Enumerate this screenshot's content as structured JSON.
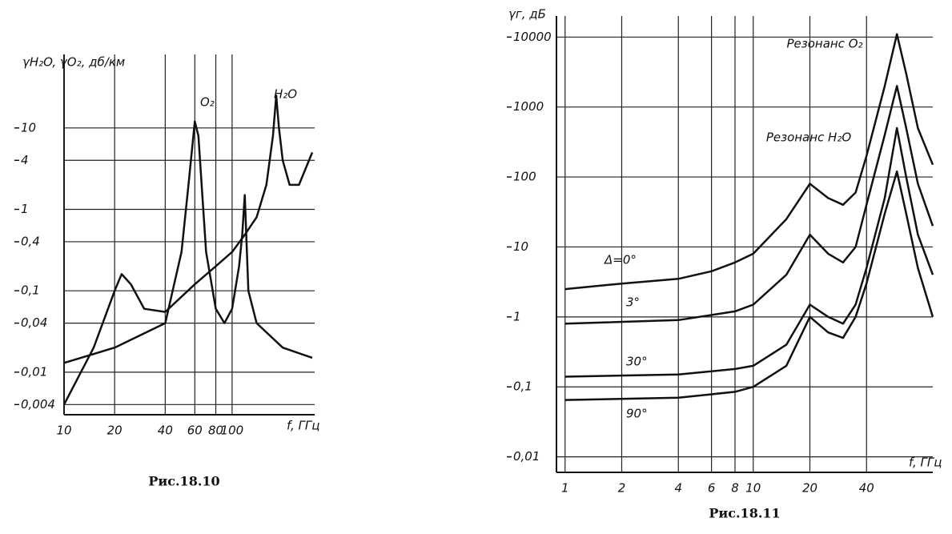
{
  "chart_data": [
    {
      "type": "line",
      "caption": "Рис.18.10",
      "y_label": "γH₂O, γO₂, дб/км",
      "x_label": "f, ГГц",
      "xscale": "log",
      "yscale": "log",
      "grid": true,
      "xlim": [
        10,
        310
      ],
      "ylim": [
        0.003,
        80
      ],
      "xticks": [
        10,
        20,
        40,
        60,
        80,
        100
      ],
      "yticks": [
        {
          "value": 0.004,
          "label": "0,004"
        },
        {
          "value": 0.01,
          "label": "0,01"
        },
        {
          "value": 0.04,
          "label": "0,04"
        },
        {
          "value": 0.1,
          "label": "0,1"
        },
        {
          "value": 0.4,
          "label": "0,4"
        },
        1,
        4,
        10
      ],
      "series": [
        {
          "name": "H₂O",
          "color": "#111111",
          "x": [
            10,
            15,
            20,
            22,
            25,
            30,
            40,
            60,
            80,
            100,
            120,
            140,
            160,
            175,
            183,
            190,
            200,
            220,
            250,
            300
          ],
          "values": [
            0.004,
            0.02,
            0.1,
            0.16,
            0.12,
            0.06,
            0.055,
            0.12,
            0.2,
            0.3,
            0.5,
            0.8,
            2,
            8,
            25,
            10,
            4,
            2,
            2,
            5
          ]
        },
        {
          "name": "O₂",
          "color": "#111111",
          "x": [
            10,
            20,
            40,
            50,
            55,
            60,
            63,
            70,
            80,
            90,
            100,
            110,
            115,
            119,
            125,
            140,
            200,
            300
          ],
          "values": [
            0.013,
            0.02,
            0.04,
            0.3,
            2,
            12,
            8,
            0.3,
            0.06,
            0.04,
            0.06,
            0.2,
            0.5,
            1.5,
            0.1,
            0.04,
            0.02,
            0.015
          ]
        }
      ]
    },
    {
      "type": "line",
      "caption": "Рис.18.11",
      "y_label": "γг, дБ",
      "x_label": "f, ГГц",
      "xscale": "log",
      "yscale": "log",
      "grid": true,
      "xlim": [
        0.9,
        90
      ],
      "ylim": [
        0.006,
        20000
      ],
      "xticks": [
        1,
        2,
        4,
        6,
        8,
        10,
        20,
        40
      ],
      "yticks": [
        {
          "value": 0.01,
          "label": "0,01"
        },
        {
          "value": 0.1,
          "label": "0,1"
        },
        1,
        10,
        100,
        1000,
        10000
      ],
      "annotations": [
        "Резонанс O₂",
        "Резонанс H₂O"
      ],
      "series": [
        {
          "name": "Δ=0°",
          "color": "#111111",
          "x": [
            1,
            2,
            4,
            6,
            8,
            10,
            15,
            20,
            25,
            30,
            35,
            40,
            50,
            58,
            65,
            75,
            90
          ],
          "values": [
            2.5,
            3,
            3.5,
            4.5,
            6,
            8,
            25,
            80,
            50,
            40,
            60,
            200,
            2000,
            11000,
            3000,
            500,
            150
          ]
        },
        {
          "name": "3°",
          "color": "#111111",
          "x": [
            1,
            4,
            8,
            10,
            15,
            20,
            25,
            30,
            35,
            40,
            50,
            58,
            65,
            75,
            90
          ],
          "values": [
            0.8,
            0.9,
            1.2,
            1.5,
            4,
            15,
            8,
            6,
            10,
            40,
            400,
            2000,
            500,
            80,
            20
          ]
        },
        {
          "name": "30°",
          "color": "#111111",
          "x": [
            1,
            4,
            8,
            10,
            15,
            20,
            25,
            30,
            35,
            40,
            50,
            58,
            65,
            75,
            90
          ],
          "values": [
            0.14,
            0.15,
            0.18,
            0.2,
            0.4,
            1.5,
            1,
            0.8,
            1.5,
            5,
            50,
            500,
            100,
            15,
            4
          ]
        },
        {
          "name": "90°",
          "color": "#111111",
          "x": [
            1,
            4,
            8,
            10,
            15,
            20,
            25,
            30,
            35,
            40,
            50,
            58,
            65,
            75,
            90
          ],
          "values": [
            0.065,
            0.07,
            0.085,
            0.1,
            0.2,
            1,
            0.6,
            0.5,
            1,
            3,
            30,
            120,
            30,
            5,
            1
          ]
        }
      ]
    }
  ]
}
